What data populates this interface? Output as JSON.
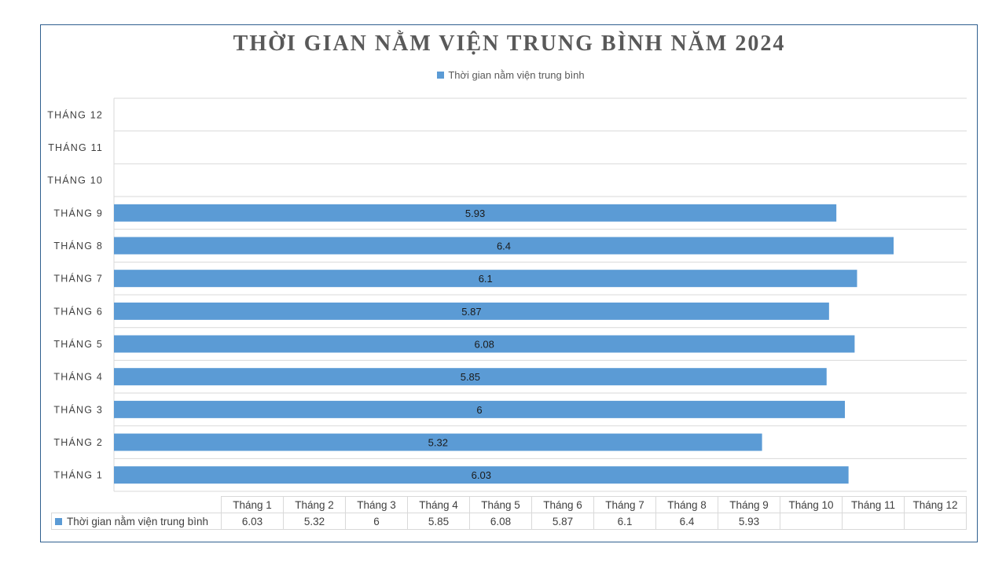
{
  "chart_data": {
    "type": "bar",
    "orientation": "horizontal",
    "title": "THỜI GIAN NẰM VIỆN TRUNG BÌNH NĂM 2024",
    "categories_axis": [
      "THÁNG 1",
      "THÁNG 2",
      "THÁNG 3",
      "THÁNG 4",
      "THÁNG 5",
      "THÁNG 6",
      "THÁNG 7",
      "THÁNG 8",
      "THÁNG 9",
      "THÁNG 10",
      "THÁNG 11",
      "THÁNG 12"
    ],
    "categories_table": [
      "Tháng 1",
      "Tháng 2",
      "Tháng 3",
      "Tháng 4",
      "Tháng 5",
      "Tháng 6",
      "Tháng 7",
      "Tháng 8",
      "Tháng 9",
      "Tháng 10",
      "Tháng 11",
      "Tháng 12"
    ],
    "series": [
      {
        "name": "Thời gian nằm viện trung bình",
        "color": "#5b9bd5",
        "values": [
          6.03,
          5.32,
          6,
          5.85,
          6.08,
          5.87,
          6.1,
          6.4,
          5.93,
          null,
          null,
          null
        ],
        "labels": [
          "6.03",
          "5.32",
          "6",
          "5.85",
          "6.08",
          "5.87",
          "6.1",
          "6.4",
          "5.93",
          "",
          "",
          ""
        ]
      }
    ],
    "xlim": [
      0,
      7
    ],
    "grid": true,
    "legend": "top",
    "data_table": true
  }
}
